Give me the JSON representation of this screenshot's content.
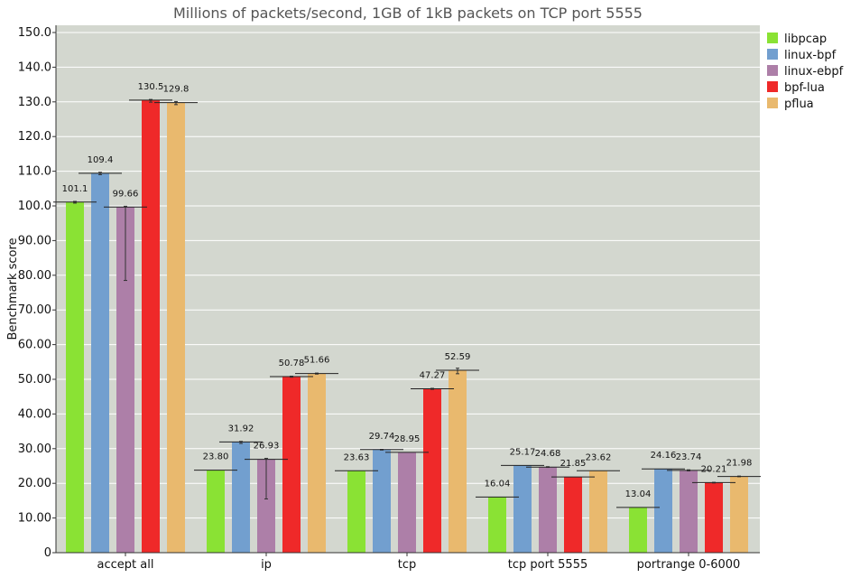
{
  "chart_data": {
    "type": "bar",
    "title": "Millions of packets/second, 1GB of 1kB packets on TCP port 5555",
    "xlabel": "",
    "ylabel": "Benchmark score",
    "ylim": [
      0,
      150
    ],
    "yticks": [
      0,
      10,
      20,
      30,
      40,
      50,
      60,
      70,
      80,
      90,
      100,
      110,
      120,
      130,
      140,
      150
    ],
    "ytick_labels": [
      "0",
      "10.00",
      "20.00",
      "30.00",
      "40.00",
      "50.00",
      "60.00",
      "70.00",
      "80.00",
      "90.00",
      "100.0",
      "110.0",
      "120.0",
      "130.0",
      "140.0",
      "150.0"
    ],
    "grid": true,
    "legend_position": "right",
    "categories": [
      "accept all",
      "ip",
      "tcp",
      "tcp port 5555",
      "portrange 0-6000"
    ],
    "series": [
      {
        "name": "libpcap",
        "color": "#8ae234",
        "values": [
          101.1,
          23.8,
          23.63,
          16.04,
          13.04
        ],
        "labels": [
          "101.1",
          "23.80",
          "23.63",
          "16.04",
          "13.04"
        ],
        "err_low": [
          100.8,
          23.8,
          23.63,
          16.04,
          13.0
        ],
        "err_high": [
          101.3,
          23.8,
          23.63,
          16.04,
          13.1
        ]
      },
      {
        "name": "linux-bpf",
        "color": "#729fcf",
        "values": [
          109.4,
          31.92,
          29.74,
          25.17,
          24.16
        ],
        "labels": [
          "109.4",
          "31.92",
          "29.74",
          "25.17",
          "24.16"
        ],
        "err_low": [
          109.0,
          31.5,
          29.6,
          25.1,
          24.1
        ],
        "err_high": [
          109.7,
          32.1,
          29.8,
          25.2,
          24.2
        ]
      },
      {
        "name": "linux-ebpf",
        "color": "#ad7fa8",
        "values": [
          99.66,
          26.93,
          28.95,
          24.68,
          23.74
        ],
        "labels": [
          "99.66",
          "26.93",
          "28.95",
          "24.68",
          "23.74"
        ],
        "err_low": [
          78.5,
          15.5,
          28.9,
          24.6,
          23.6
        ],
        "err_high": [
          99.9,
          27.2,
          29.0,
          24.8,
          23.9
        ]
      },
      {
        "name": "bpf-lua",
        "color": "#ef2929",
        "values": [
          130.5,
          50.78,
          47.27,
          21.85,
          20.21
        ],
        "labels": [
          "130.5",
          "50.78",
          "47.27",
          "21.85",
          "20.21"
        ],
        "err_low": [
          129.9,
          50.6,
          47.1,
          21.8,
          20.1
        ],
        "err_high": [
          130.7,
          50.9,
          47.4,
          21.9,
          20.3
        ]
      },
      {
        "name": "pflua",
        "color": "#e9b96e",
        "values": [
          129.8,
          51.66,
          52.59,
          23.62,
          21.98
        ],
        "labels": [
          "129.8",
          "51.66",
          "52.59",
          "23.62",
          "21.98"
        ],
        "err_low": [
          129.2,
          51.5,
          51.6,
          23.6,
          21.9
        ],
        "err_high": [
          130.1,
          51.8,
          53.2,
          23.7,
          22.1
        ]
      }
    ]
  }
}
